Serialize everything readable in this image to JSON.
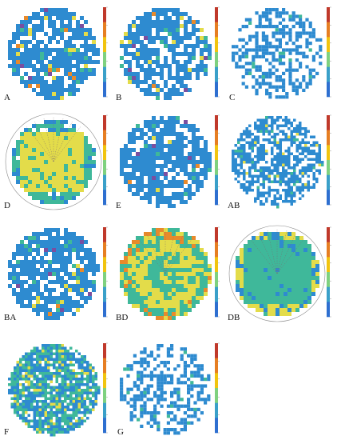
{
  "figure": {
    "background": "#ffffff",
    "palette": {
      "cell_default": "#2e8bd0",
      "cell_teal": "#3fb89a",
      "cell_yellow": "#e3dc4a",
      "cell_orange": "#e88a2b",
      "cell_red": "#cc4e24",
      "cell_purple": "#7a4fa0",
      "cell_gray": "#b8b8b8",
      "outline": "#8a8a8a"
    },
    "colorbar_stops": [
      "#c0392b",
      "#e67e22",
      "#f1c40f",
      "#7fd17f",
      "#3aa0c9",
      "#2e6fd0"
    ],
    "panels": [
      {
        "label": "A",
        "pattern": "blocky-mixed"
      },
      {
        "label": "B",
        "pattern": "blocky-mixed"
      },
      {
        "label": "C",
        "pattern": "sparse-scatter"
      },
      {
        "label": "D",
        "pattern": "central-square-yellow"
      },
      {
        "label": "E",
        "pattern": "blocky-mixed"
      },
      {
        "label": "AB",
        "pattern": "fine-scatter"
      },
      {
        "label": "BA",
        "pattern": "blocky-mixed"
      },
      {
        "label": "BD",
        "pattern": "gradient-yellow"
      },
      {
        "label": "DB",
        "pattern": "central-square-green"
      },
      {
        "label": "F",
        "pattern": "dense-fine-mixed"
      },
      {
        "label": "G",
        "pattern": "sparse-scatter"
      }
    ]
  }
}
